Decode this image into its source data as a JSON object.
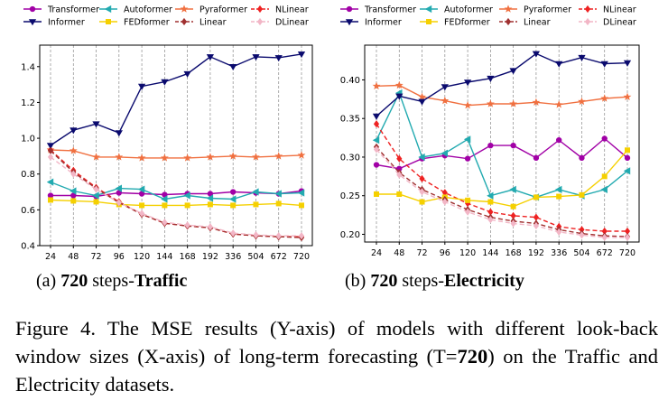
{
  "chart_data": [
    {
      "type": "line",
      "x_categories": [
        "24",
        "48",
        "72",
        "96",
        "120",
        "144",
        "168",
        "192",
        "336",
        "504",
        "672",
        "720"
      ],
      "ylim": [
        0.4,
        1.52
      ],
      "yticks": [
        "0.4",
        "0.6",
        "0.8",
        "1.0",
        "1.2",
        "1.4"
      ],
      "yticks_values": [
        0.4,
        0.6,
        0.8,
        1.0,
        1.2,
        1.4
      ],
      "grid": "vertical dashed",
      "legend_placement": "top",
      "series": [
        {
          "name": "Transformer",
          "color": "#a100a6",
          "marker": "circle",
          "dashed": false,
          "values": [
            0.68,
            0.68,
            0.675,
            0.695,
            0.69,
            0.685,
            0.69,
            0.69,
            0.7,
            0.695,
            0.69,
            0.705
          ]
        },
        {
          "name": "Autoformer",
          "color": "#22aab0",
          "marker": "tri-left",
          "dashed": false,
          "values": [
            0.755,
            0.705,
            0.68,
            0.72,
            0.715,
            0.66,
            0.68,
            0.665,
            0.66,
            0.7,
            0.69,
            0.695
          ]
        },
        {
          "name": "Pyraformer",
          "color": "#f07040",
          "marker": "star",
          "dashed": false,
          "values": [
            0.935,
            0.93,
            0.895,
            0.895,
            0.89,
            0.89,
            0.89,
            0.895,
            0.9,
            0.895,
            0.9,
            0.905
          ]
        },
        {
          "name": "NLinear",
          "color": "#ee2222",
          "marker": "diamond",
          "dashed": true,
          "values": [
            0.935,
            0.82,
            0.725,
            0.645,
            0.575,
            0.525,
            0.51,
            0.5,
            0.465,
            0.455,
            0.45,
            0.45
          ]
        },
        {
          "name": "Informer",
          "color": "#0a0a6e",
          "marker": "tri-down",
          "dashed": false,
          "values": [
            0.96,
            1.045,
            1.08,
            1.03,
            1.29,
            1.315,
            1.36,
            1.455,
            1.4,
            1.455,
            1.45,
            1.47
          ]
        },
        {
          "name": "FEDformer",
          "color": "#f5d000",
          "marker": "square",
          "dashed": false,
          "values": [
            0.655,
            0.65,
            0.645,
            0.63,
            0.625,
            0.625,
            0.625,
            0.63,
            0.625,
            0.63,
            0.635,
            0.625
          ]
        },
        {
          "name": "Linear",
          "color": "#a03030",
          "marker": "diamond",
          "dashed": true,
          "values": [
            0.93,
            0.81,
            0.72,
            0.64,
            0.575,
            0.525,
            0.51,
            0.5,
            0.465,
            0.455,
            0.45,
            0.445
          ]
        },
        {
          "name": "DLinear",
          "color": "#f2b6c6",
          "marker": "diamond",
          "dashed": true,
          "values": [
            0.895,
            0.8,
            0.715,
            0.64,
            0.58,
            0.53,
            0.515,
            0.505,
            0.47,
            0.46,
            0.455,
            0.455
          ]
        }
      ]
    },
    {
      "type": "line",
      "x_categories": [
        "24",
        "48",
        "72",
        "96",
        "120",
        "144",
        "168",
        "192",
        "336",
        "504",
        "672",
        "720"
      ],
      "ylim": [
        0.19,
        0.445
      ],
      "yticks": [
        "0.20",
        "0.25",
        "0.30",
        "0.35",
        "0.40"
      ],
      "yticks_values": [
        0.2,
        0.25,
        0.3,
        0.35,
        0.4
      ],
      "grid": "vertical dashed",
      "legend_placement": "top",
      "series": [
        {
          "name": "Transformer",
          "color": "#a100a6",
          "marker": "circle",
          "dashed": false,
          "values": [
            0.29,
            0.285,
            0.298,
            0.302,
            0.298,
            0.315,
            0.315,
            0.299,
            0.322,
            0.299,
            0.324,
            0.299
          ]
        },
        {
          "name": "Autoformer",
          "color": "#22aab0",
          "marker": "tri-left",
          "dashed": false,
          "values": [
            0.322,
            0.383,
            0.3,
            0.305,
            0.323,
            0.25,
            0.258,
            0.248,
            0.258,
            0.25,
            0.258,
            0.282
          ]
        },
        {
          "name": "Pyraformer",
          "color": "#f07040",
          "marker": "star",
          "dashed": false,
          "values": [
            0.392,
            0.393,
            0.378,
            0.373,
            0.367,
            0.369,
            0.369,
            0.371,
            0.368,
            0.372,
            0.376,
            0.378
          ]
        },
        {
          "name": "NLinear",
          "color": "#ee2222",
          "marker": "diamond",
          "dashed": true,
          "values": [
            0.343,
            0.298,
            0.272,
            0.254,
            0.24,
            0.229,
            0.224,
            0.222,
            0.21,
            0.206,
            0.204,
            0.204
          ]
        },
        {
          "name": "Informer",
          "color": "#0a0a6e",
          "marker": "tri-down",
          "dashed": false,
          "values": [
            0.353,
            0.379,
            0.372,
            0.391,
            0.397,
            0.402,
            0.412,
            0.434,
            0.421,
            0.429,
            0.421,
            0.422
          ]
        },
        {
          "name": "FEDformer",
          "color": "#f5d000",
          "marker": "square",
          "dashed": false,
          "values": [
            0.252,
            0.252,
            0.242,
            0.248,
            0.244,
            0.242,
            0.236,
            0.248,
            0.249,
            0.251,
            0.275,
            0.309
          ]
        },
        {
          "name": "Linear",
          "color": "#a03030",
          "marker": "diamond",
          "dashed": true,
          "values": [
            0.313,
            0.28,
            0.258,
            0.245,
            0.232,
            0.222,
            0.217,
            0.214,
            0.206,
            0.201,
            0.198,
            0.197
          ]
        },
        {
          "name": "DLinear",
          "color": "#f2b6c6",
          "marker": "diamond",
          "dashed": true,
          "values": [
            0.31,
            0.277,
            0.255,
            0.242,
            0.229,
            0.219,
            0.214,
            0.211,
            0.203,
            0.199,
            0.196,
            0.196
          ]
        }
      ]
    }
  ],
  "captions": {
    "a_label": "(a)",
    "a_num": "720",
    "a_mid": " steps-",
    "a_name": "Traffic",
    "b_label": "(b)",
    "b_num": "720",
    "b_mid": " steps-",
    "b_name": "Electricity",
    "figure_pre": "Figure 4. The MSE results (Y-axis) of models with different look-back window sizes (X-axis) of long-term forecasting (T=",
    "figure_bold": "720",
    "figure_post": ") on the Traffic and Electricity datasets."
  }
}
